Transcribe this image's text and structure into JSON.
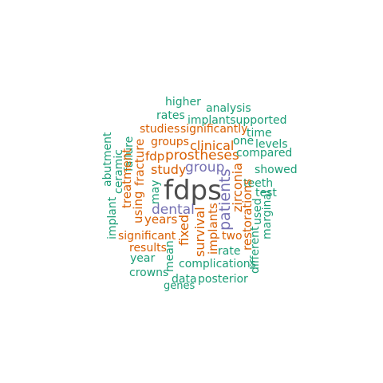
{
  "word_cloud": {
    "colors": {
      "teal": "#1b9e77",
      "orange": "#d95f02",
      "purple": "#7570b3",
      "dark": "#4d4d4d"
    },
    "words": {
      "fdps": "fdps",
      "higher": "higher",
      "analysis": "analysis",
      "rates": "rates",
      "implantsupported": "implantsupported",
      "studies": "studies",
      "significantly": "significantly",
      "time": "time",
      "groups": "groups",
      "clinical": "clinical",
      "one": "one",
      "levels": "levels",
      "fdp": "fdp",
      "prostheses": "prostheses",
      "compared": "compared",
      "study": "study",
      "group": "group",
      "showed": "showed",
      "teeth": "teeth",
      "test": "test",
      "dental": "dental",
      "years": "years",
      "significant": "significant",
      "two": "two",
      "results": "results",
      "rate": "rate",
      "year": "year",
      "complications": "complications",
      "crowns": "crowns",
      "data": "data",
      "posterior": "posterior",
      "genes": "genes",
      "abutment": "abutment",
      "ceramic": "ceramic",
      "failure": "failure",
      "treatment": "treatment",
      "fracture": "fracture",
      "may": "may",
      "implant": "implant",
      "using": "using",
      "fixed": "fixed",
      "survival": "survival",
      "implants": "implants",
      "patients": "patients",
      "zirconia": "zirconia",
      "mean": "mean",
      "restorations": "restorations",
      "used": "used",
      "different": "different",
      "marginal": "marginal"
    }
  }
}
